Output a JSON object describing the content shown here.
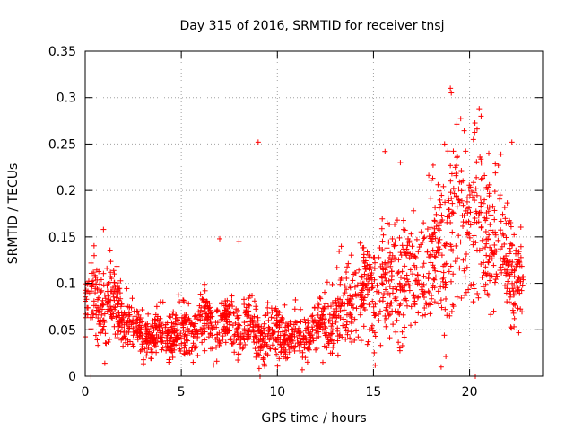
{
  "chart_data": {
    "type": "scatter",
    "title": "Day 315 of 2016, SRMTID for receiver tnsj",
    "xlabel": "GPS time / hours",
    "ylabel": "SRMTID / TECUs",
    "xlim": [
      0,
      23.8
    ],
    "ylim": [
      0,
      0.35
    ],
    "xticks": [
      0,
      5,
      10,
      15,
      20
    ],
    "xtick_labels": [
      "0",
      "5",
      "10",
      "15",
      "20"
    ],
    "yticks": [
      0,
      0.05,
      0.1,
      0.15,
      0.2,
      0.25,
      0.3,
      0.35
    ],
    "ytick_labels": [
      "0",
      "0.05",
      "0.1",
      "0.15",
      "0.2",
      "0.25",
      "0.3",
      "0.35"
    ],
    "grid": true,
    "marker": "+",
    "marker_color": "#ff0000",
    "trend": {
      "hours": [
        0,
        0.5,
        1,
        2,
        3,
        4,
        5,
        6,
        7,
        8,
        9,
        10,
        11,
        12,
        13,
        14,
        15,
        16,
        17,
        18,
        19,
        20,
        21,
        22,
        22.8
      ],
      "median": [
        0.08,
        0.085,
        0.09,
        0.065,
        0.045,
        0.045,
        0.05,
        0.055,
        0.06,
        0.05,
        0.045,
        0.045,
        0.04,
        0.05,
        0.065,
        0.08,
        0.095,
        0.105,
        0.1,
        0.12,
        0.15,
        0.17,
        0.16,
        0.12,
        0.1
      ],
      "spread": [
        0.02,
        0.025,
        0.03,
        0.02,
        0.015,
        0.015,
        0.02,
        0.02,
        0.02,
        0.02,
        0.02,
        0.02,
        0.015,
        0.02,
        0.025,
        0.03,
        0.04,
        0.04,
        0.04,
        0.05,
        0.06,
        0.06,
        0.05,
        0.04,
        0.03
      ]
    },
    "n_points": 2000,
    "outliers": [
      {
        "x": 0.3,
        "y": 0.0
      },
      {
        "x": 9.0,
        "y": 0.252
      },
      {
        "x": 9.1,
        "y": 0.0
      },
      {
        "x": 19.0,
        "y": 0.31
      },
      {
        "x": 19.05,
        "y": 0.305
      },
      {
        "x": 20.3,
        "y": 0.0
      },
      {
        "x": 20.5,
        "y": 0.288
      },
      {
        "x": 20.6,
        "y": 0.28
      },
      {
        "x": 22.2,
        "y": 0.252
      },
      {
        "x": 15.6,
        "y": 0.242
      },
      {
        "x": 16.4,
        "y": 0.23
      },
      {
        "x": 18.7,
        "y": 0.25
      },
      {
        "x": 21.0,
        "y": 0.24
      },
      {
        "x": 7.0,
        "y": 0.148
      },
      {
        "x": 8.0,
        "y": 0.145
      },
      {
        "x": 0.95,
        "y": 0.158
      }
    ]
  }
}
